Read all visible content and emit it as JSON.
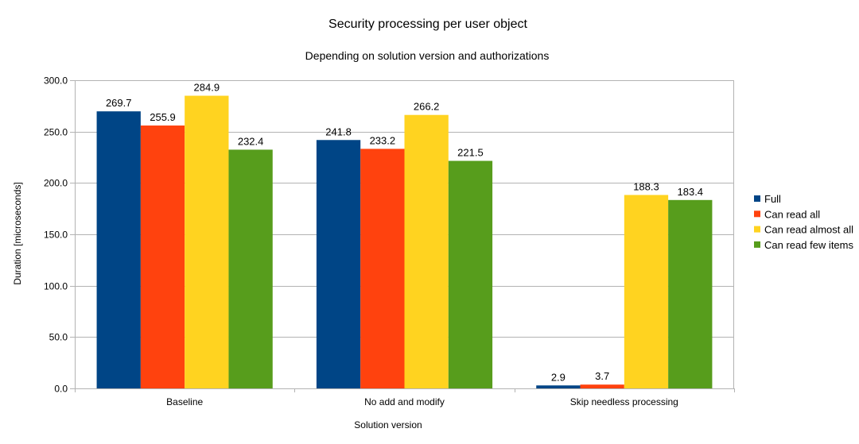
{
  "chart_data": {
    "type": "bar",
    "title": "Security processing per user object",
    "subtitle": "Depending on solution version and authorizations",
    "xlabel": "Solution version",
    "ylabel": "Duration [microseconds]",
    "ylim": [
      0,
      300
    ],
    "ytick_step": 50,
    "yticks": [
      "0.0",
      "50.0",
      "100.0",
      "150.0",
      "200.0",
      "250.0",
      "300.0"
    ],
    "grid": true,
    "legend_position": "right",
    "categories": [
      "Baseline",
      "No add and modify",
      "Skip needless processing"
    ],
    "series": [
      {
        "name": "Full",
        "color": "#004586",
        "values": [
          269.7,
          241.8,
          2.9
        ],
        "labels": [
          "269.7",
          "241.8",
          "2.9"
        ]
      },
      {
        "name": "Can read all",
        "color": "#ff420e",
        "values": [
          255.9,
          233.2,
          3.7
        ],
        "labels": [
          "255.9",
          "233.2",
          "3.7"
        ]
      },
      {
        "name": "Can read almost all",
        "color": "#ffd320",
        "values": [
          284.9,
          266.2,
          188.3
        ],
        "labels": [
          "284.9",
          "266.2",
          "188.3"
        ]
      },
      {
        "name": "Can read few items",
        "color": "#579d1c",
        "values": [
          232.4,
          221.5,
          183.4
        ],
        "labels": [
          "232.4",
          "221.5",
          "183.4"
        ]
      }
    ]
  }
}
